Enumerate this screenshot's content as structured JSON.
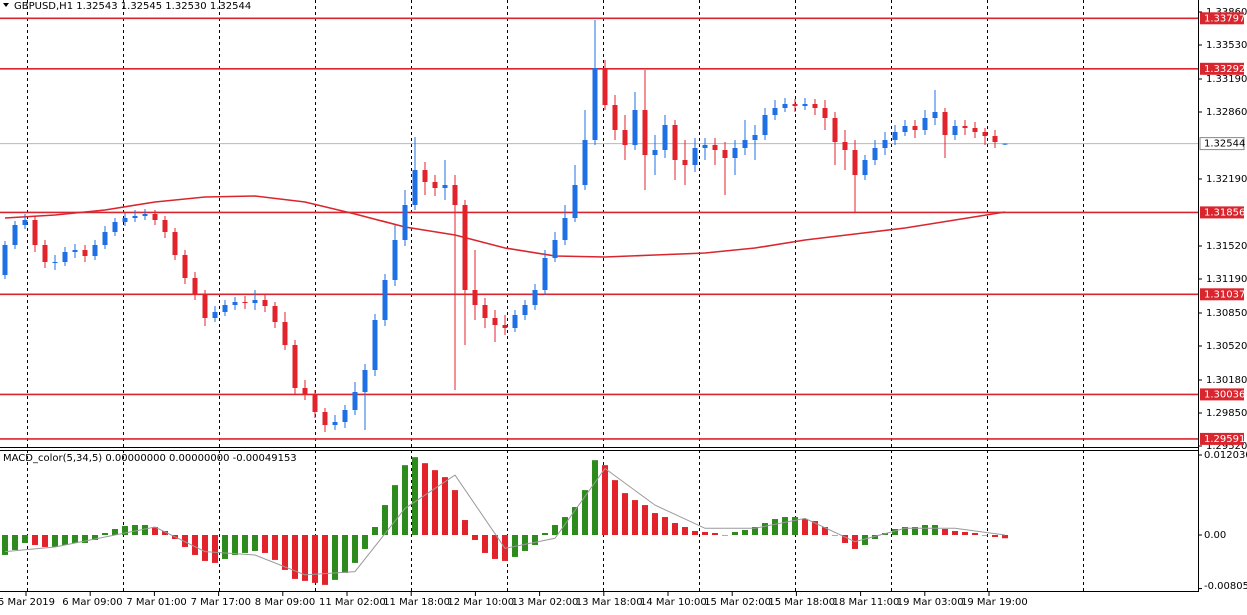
{
  "chart_data": [
    {
      "type": "candlestick",
      "title": "GBPUSD,H1  1.32543 1.32545 1.32530 1.32544",
      "up_color": "#1f6fe5",
      "down_color": "#e3232c",
      "level_color": "#d9262e",
      "ma_color": "#d9262e",
      "ylim": [
        1.2951,
        1.3396
      ],
      "yticks": [
        {
          "value": 1.3386,
          "label": "1.33860"
        },
        {
          "value": 1.3353,
          "label": "1.33530"
        },
        {
          "value": 1.3319,
          "label": "1.33190"
        },
        {
          "value": 1.3286,
          "label": "1.32860"
        },
        {
          "value": 1.3219,
          "label": "1.32190"
        },
        {
          "value": 1.3152,
          "label": "1.31520"
        },
        {
          "value": 1.3119,
          "label": "1.31190"
        },
        {
          "value": 1.3085,
          "label": "1.30850"
        },
        {
          "value": 1.3052,
          "label": "1.30520"
        },
        {
          "value": 1.3018,
          "label": "1.30180"
        },
        {
          "value": 1.2985,
          "label": "1.29850"
        },
        {
          "value": 1.2952,
          "label": "1.29520"
        }
      ],
      "levels": [
        1.33797,
        1.33292,
        1.31856,
        1.31037,
        1.30036,
        1.29591
      ],
      "price_line": 1.32544,
      "x_labels": [
        "5 Mar 2019",
        "6 Mar 09:00",
        "7 Mar 01:00",
        "7 Mar 17:00",
        "8 Mar 09:00",
        "11 Mar 02:00",
        "11 Mar 18:00",
        "12 Mar 10:00",
        "13 Mar 02:00",
        "13 Mar 18:00",
        "14 Mar 10:00",
        "15 Mar 02:00",
        "15 Mar 18:00",
        "18 Mar 11:00",
        "19 Mar 03:00",
        "19 Mar 19:00"
      ],
      "open": [
        1.3123,
        1.3153,
        1.3173,
        1.3178,
        1.3153,
        1.3136,
        1.3136,
        1.3146,
        1.3148,
        1.3142,
        1.3153,
        1.3166,
        1.3176,
        1.318,
        1.3182,
        1.3184,
        1.3178,
        1.3166,
        1.3143,
        1.312,
        1.3103,
        1.308,
        1.3086,
        1.3093,
        1.3096,
        1.3095,
        1.3098,
        1.3092,
        1.3076,
        1.3053,
        1.301,
        1.3003,
        1.2986,
        1.2973,
        1.2976,
        1.2988,
        1.3006,
        1.3028,
        1.3078,
        1.3118,
        1.3158,
        1.3193,
        1.3228,
        1.3216,
        1.321,
        1.3213,
        1.3193,
        1.3108,
        1.3093,
        1.308,
        1.3073,
        1.307,
        1.3083,
        1.3093,
        1.3108,
        1.314,
        1.3158,
        1.318,
        1.3213,
        1.3258,
        1.333,
        1.3293,
        1.3268,
        1.3253,
        1.3288,
        1.3243,
        1.3248,
        1.3273,
        1.3238,
        1.3233,
        1.325,
        1.3253,
        1.3248,
        1.324,
        1.325,
        1.3258,
        1.3263,
        1.3283,
        1.329,
        1.3294,
        1.3292,
        1.3294,
        1.329,
        1.328,
        1.3256,
        1.3248,
        1.3223,
        1.3238,
        1.325,
        1.3258,
        1.3266,
        1.3272,
        1.3268,
        1.328,
        1.3286,
        1.3263,
        1.3272,
        1.327,
        1.3266,
        1.3262,
        1.32543
      ],
      "high": [
        1.3157,
        1.3177,
        1.3184,
        1.3182,
        1.3158,
        1.3143,
        1.3151,
        1.3154,
        1.3153,
        1.3158,
        1.3172,
        1.318,
        1.3185,
        1.3188,
        1.3189,
        1.3188,
        1.3182,
        1.317,
        1.3148,
        1.3126,
        1.3108,
        1.3092,
        1.3098,
        1.3101,
        1.3102,
        1.3108,
        1.3103,
        1.3096,
        1.3086,
        1.3058,
        1.3018,
        1.3008,
        1.299,
        1.2983,
        1.2993,
        1.3016,
        1.3034,
        1.3084,
        1.3124,
        1.3173,
        1.3208,
        1.3261,
        1.3236,
        1.3223,
        1.3238,
        1.3223,
        1.3198,
        1.3148,
        1.31,
        1.3088,
        1.3083,
        1.3088,
        1.3098,
        1.3114,
        1.3148,
        1.3166,
        1.3193,
        1.3233,
        1.3288,
        1.3378,
        1.3338,
        1.3303,
        1.3283,
        1.3306,
        1.3328,
        1.3263,
        1.3283,
        1.3278,
        1.3258,
        1.326,
        1.326,
        1.326,
        1.3256,
        1.3258,
        1.3278,
        1.3273,
        1.329,
        1.3298,
        1.33,
        1.3299,
        1.33,
        1.3299,
        1.3298,
        1.3286,
        1.3268,
        1.3258,
        1.3243,
        1.3258,
        1.3266,
        1.3273,
        1.3278,
        1.3278,
        1.3288,
        1.3308,
        1.329,
        1.3278,
        1.3278,
        1.3276,
        1.327,
        1.3268,
        1.32545
      ],
      "low": [
        1.3119,
        1.3149,
        1.3169,
        1.3146,
        1.313,
        1.3128,
        1.3132,
        1.314,
        1.3136,
        1.3138,
        1.3149,
        1.3162,
        1.3172,
        1.3176,
        1.3178,
        1.3173,
        1.316,
        1.3138,
        1.3114,
        1.3098,
        1.3072,
        1.3076,
        1.3082,
        1.3088,
        1.3089,
        1.3088,
        1.3086,
        1.307,
        1.3048,
        1.3003,
        1.2998,
        1.298,
        1.2966,
        1.2968,
        1.297,
        1.2983,
        1.2968,
        1.3022,
        1.3072,
        1.3112,
        1.3152,
        1.3188,
        1.3203,
        1.3202,
        1.3198,
        1.3008,
        1.3053,
        1.3078,
        1.307,
        1.3056,
        1.3063,
        1.3066,
        1.3078,
        1.3088,
        1.3103,
        1.3136,
        1.3153,
        1.3176,
        1.3208,
        1.3253,
        1.3288,
        1.3258,
        1.3238,
        1.3248,
        1.3208,
        1.3223,
        1.324,
        1.3218,
        1.3213,
        1.3226,
        1.3238,
        1.3233,
        1.3203,
        1.3223,
        1.3243,
        1.3238,
        1.3258,
        1.3278,
        1.3286,
        1.3286,
        1.3288,
        1.3283,
        1.3268,
        1.3233,
        1.3228,
        1.3186,
        1.3218,
        1.3233,
        1.3243,
        1.3253,
        1.3262,
        1.326,
        1.3263,
        1.3273,
        1.324,
        1.3258,
        1.3263,
        1.326,
        1.3253,
        1.325,
        1.3253
      ],
      "close": [
        1.3153,
        1.3173,
        1.3178,
        1.3153,
        1.3136,
        1.3136,
        1.3146,
        1.3148,
        1.3142,
        1.3153,
        1.3166,
        1.3176,
        1.318,
        1.3182,
        1.3184,
        1.3178,
        1.3166,
        1.3143,
        1.312,
        1.3103,
        1.308,
        1.3086,
        1.3093,
        1.3096,
        1.3095,
        1.3098,
        1.3092,
        1.3076,
        1.3053,
        1.301,
        1.3003,
        1.2986,
        1.2973,
        1.2976,
        1.2988,
        1.3006,
        1.3028,
        1.3078,
        1.3118,
        1.3158,
        1.3193,
        1.3228,
        1.3216,
        1.321,
        1.3213,
        1.3193,
        1.3108,
        1.3093,
        1.308,
        1.3073,
        1.307,
        1.3083,
        1.3093,
        1.3108,
        1.314,
        1.3158,
        1.318,
        1.3213,
        1.3258,
        1.333,
        1.3293,
        1.3268,
        1.3253,
        1.3288,
        1.3243,
        1.3248,
        1.3273,
        1.3238,
        1.3233,
        1.325,
        1.3253,
        1.3248,
        1.324,
        1.325,
        1.3258,
        1.3263,
        1.3283,
        1.329,
        1.3294,
        1.3292,
        1.3294,
        1.329,
        1.328,
        1.3256,
        1.3248,
        1.3223,
        1.3238,
        1.325,
        1.3258,
        1.3266,
        1.3272,
        1.3268,
        1.328,
        1.3286,
        1.3263,
        1.3272,
        1.327,
        1.3266,
        1.3262,
        1.3256,
        1.32544
      ],
      "ma_at": [
        0,
        5,
        10,
        15,
        20,
        25,
        30,
        35,
        40,
        45,
        50,
        55,
        60,
        65,
        70,
        75,
        80,
        85,
        90,
        95,
        100
      ],
      "ma_values": [
        1.318,
        1.3183,
        1.3188,
        1.3196,
        1.3201,
        1.3202,
        1.3196,
        1.3184,
        1.3171,
        1.3163,
        1.315,
        1.3142,
        1.3141,
        1.3143,
        1.3145,
        1.315,
        1.3158,
        1.3164,
        1.317,
        1.3178,
        1.3186
      ]
    },
    {
      "type": "bar",
      "title": "MACD_color(5,34,5) 0.00000000 0.00000000 -0.00049153",
      "up_color": "#2d8a1d",
      "down_color": "#e3232c",
      "signal_color": "#9a9a9a",
      "ylim": [
        -0.00842,
        0.01263
      ],
      "yticks": [
        0.0120303,
        {
          "value": 0,
          "label": "0.00"
        },
        -0.008054
      ],
      "values": [
        -0.003,
        -0.00225,
        -0.0012,
        -0.0015,
        -0.0018,
        -0.0018,
        -0.0015,
        -0.0012,
        -0.0012,
        -0.00075,
        0.0003,
        0.0009,
        0.00135,
        0.0015,
        0.0015,
        0.0012,
        0.0006,
        -0.0006,
        -0.0018,
        -0.003,
        -0.0039,
        -0.0042,
        -0.0036,
        -0.003,
        -0.0027,
        -0.0024,
        -0.0027,
        -0.00375,
        -0.00525,
        -0.0066,
        -0.0069,
        -0.0072,
        -0.0075,
        -0.00675,
        -0.0057,
        -0.0042,
        -0.0021,
        0.0012,
        0.0045,
        0.0075,
        0.0105,
        0.0117,
        0.0108,
        0.00975,
        0.0087,
        0.00675,
        0.00225,
        -0.00075,
        -0.0027,
        -0.0036,
        -0.0039,
        -0.0033,
        -0.0024,
        -0.0015,
        0.0003,
        0.0015,
        0.0027,
        0.0042,
        0.00675,
        0.01125,
        0.0105,
        0.00825,
        0.0063,
        0.00525,
        0.0045,
        0.0033,
        0.0027,
        0.0018,
        0.0012,
        0.0006,
        0.00045,
        0.0003,
        0,
        0.00045,
        0.00075,
        0.0012,
        0.0018,
        0.0024,
        0.0027,
        0.0027,
        0.0024,
        0.0021,
        0.0012,
        0,
        -0.0012,
        -0.0021,
        -0.0015,
        -0.0006,
        0.0003,
        0.0009,
        0.0012,
        0.0012,
        0.0015,
        0.0015,
        0.0009,
        0.0006,
        0.00045,
        0.0003,
        0,
        -0.0003,
        -0.00049153
      ],
      "signal_at": [
        0,
        5,
        10,
        15,
        20,
        25,
        30,
        35,
        40,
        45,
        50,
        55,
        60,
        65,
        70,
        75,
        80,
        85,
        90,
        95,
        100
      ],
      "signal_values": [
        -0.0025,
        -0.0018,
        -0.0003,
        0.0012,
        -0.0025,
        -0.003,
        -0.006,
        -0.0055,
        0.004,
        0.009,
        -0.002,
        -0.0005,
        0.01,
        0.0045,
        0.001,
        0.001,
        0.0025,
        -0.001,
        0.001,
        0.001,
        0
      ]
    }
  ]
}
